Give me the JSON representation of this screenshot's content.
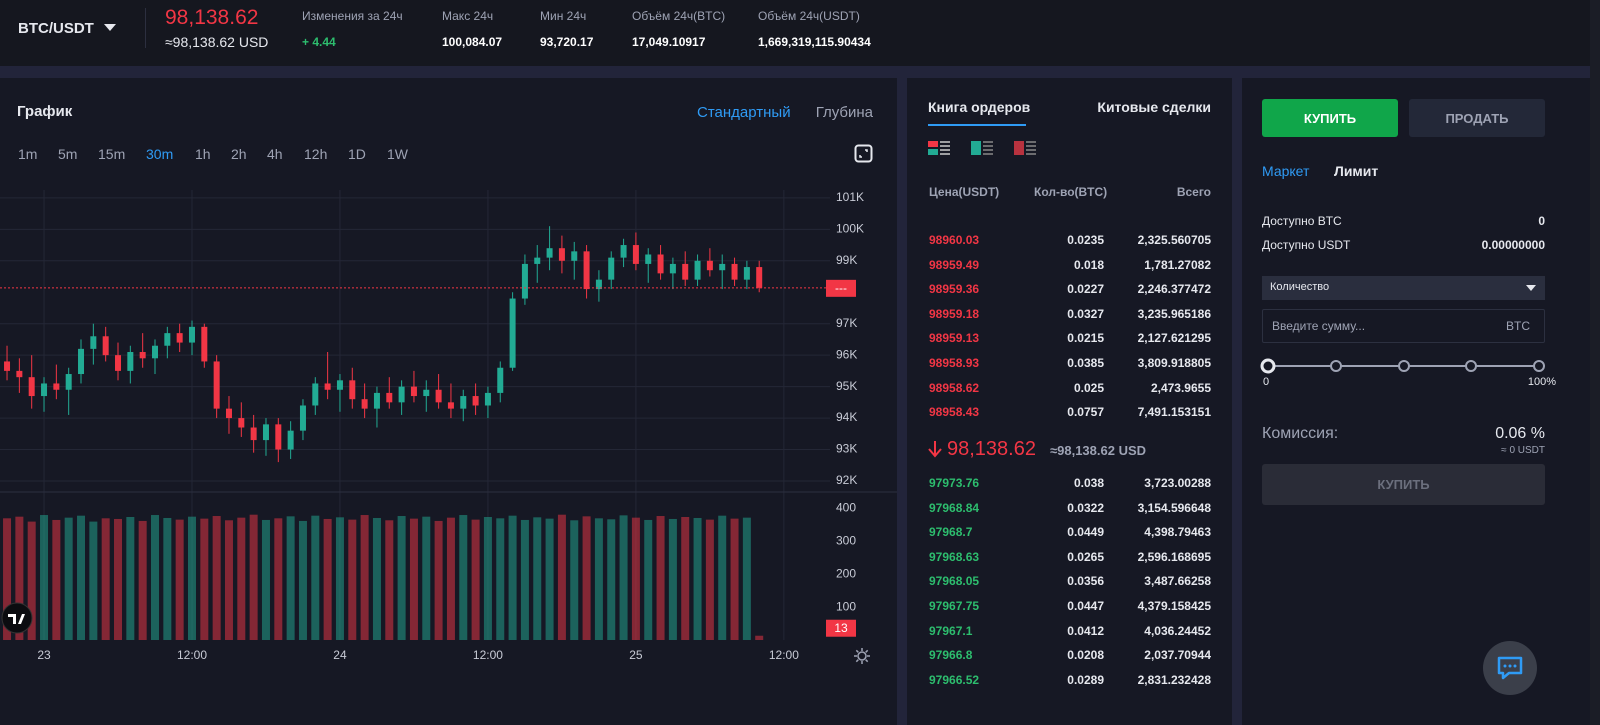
{
  "header": {
    "pair": "BTC/USDT",
    "price": "98,138.62",
    "price_usd": "≈98,138.62 USD",
    "stats": [
      {
        "label": "Изменения за 24ч",
        "value": "+ 4.44"
      },
      {
        "label": "Макс 24ч",
        "value": "100,084.07"
      },
      {
        "label": "Мин 24ч",
        "value": "93,720.17"
      },
      {
        "label": "Объём 24ч(BTC)",
        "value": "17,049.10917"
      },
      {
        "label": "Объём 24ч(USDT)",
        "value": "1,669,319,115.90434"
      }
    ]
  },
  "chart_panel": {
    "title": "График",
    "views": [
      "Стандартный",
      "Глубина"
    ],
    "active_view": 0,
    "timeframes": [
      "1m",
      "5m",
      "15m",
      "30m",
      "1h",
      "2h",
      "4h",
      "12h",
      "1D",
      "1W"
    ],
    "active_timeframe": 3
  },
  "chart_data": {
    "type": "candlestick",
    "x": [
      -3,
      -2,
      -1,
      0,
      1,
      2,
      3,
      4,
      5,
      6,
      7,
      8,
      9,
      10,
      11,
      12,
      13,
      14,
      15,
      16,
      17,
      18,
      19,
      20,
      21,
      22,
      23,
      24,
      25,
      26,
      27,
      28,
      29,
      30,
      31,
      32,
      33,
      34,
      35,
      36,
      37,
      38,
      39,
      40,
      41,
      42,
      43,
      44,
      45,
      46,
      47,
      48,
      49,
      50,
      51,
      52,
      53,
      54,
      55,
      56,
      57,
      58
    ],
    "open": [
      95800,
      95500,
      95300,
      94700,
      95100,
      94900,
      95400,
      96200,
      96600,
      96000,
      95500,
      96100,
      95900,
      96300,
      96700,
      96400,
      96900,
      95800,
      94300,
      94000,
      93700,
      93300,
      93800,
      93000,
      93600,
      94400,
      95100,
      94900,
      95200,
      94600,
      94300,
      94800,
      94500,
      95000,
      94700,
      94900,
      94500,
      94300,
      94700,
      94400,
      94800,
      95600,
      97800,
      98900,
      99100,
      99400,
      99000,
      99300,
      98100,
      98400,
      99100,
      99500,
      98900,
      99200,
      98600,
      98900,
      98400,
      99000,
      98700,
      98900,
      98400,
      98800
    ],
    "high": [
      96300,
      95900,
      96000,
      95300,
      95700,
      95600,
      96500,
      97000,
      96900,
      96400,
      96300,
      96700,
      96500,
      96900,
      97000,
      97100,
      97000,
      96000,
      94700,
      94500,
      94100,
      94000,
      94000,
      93900,
      94600,
      95300,
      96100,
      95400,
      95600,
      95100,
      95000,
      95300,
      95200,
      95500,
      95200,
      95400,
      95100,
      94900,
      95100,
      95000,
      95800,
      98000,
      99200,
      99500,
      100100,
      99800,
      99600,
      99500,
      98700,
      99300,
      99700,
      99900,
      99400,
      99500,
      99100,
      99300,
      99200,
      99400,
      99200,
      99100,
      99000,
      99000
    ],
    "low": [
      95200,
      94800,
      94300,
      94200,
      94600,
      94100,
      95100,
      95700,
      95800,
      95200,
      95100,
      95600,
      95400,
      95900,
      96100,
      96000,
      95600,
      94000,
      93500,
      93400,
      92900,
      92800,
      92600,
      92700,
      93300,
      94100,
      94600,
      94200,
      94300,
      94000,
      93700,
      94300,
      94100,
      94500,
      94200,
      94300,
      94000,
      93900,
      94100,
      94000,
      94500,
      95500,
      97600,
      98300,
      98700,
      98600,
      98400,
      97800,
      97700,
      98100,
      98800,
      98700,
      98300,
      98400,
      98100,
      98200,
      98200,
      98500,
      98100,
      98200,
      98100,
      98000
    ],
    "close": [
      95500,
      95300,
      94700,
      95100,
      94900,
      95400,
      96200,
      96600,
      96000,
      95500,
      96100,
      95900,
      96300,
      96700,
      96400,
      96900,
      95800,
      94300,
      94000,
      93700,
      93300,
      93800,
      93000,
      93600,
      94400,
      95100,
      94900,
      95200,
      94600,
      94300,
      94800,
      94500,
      95000,
      94700,
      94900,
      94500,
      94300,
      94700,
      94400,
      94800,
      95600,
      97800,
      98900,
      99100,
      99400,
      99000,
      99300,
      98100,
      98400,
      99100,
      99500,
      98900,
      99200,
      98600,
      98900,
      98400,
      99000,
      98700,
      98900,
      98400,
      98800,
      98140
    ],
    "volume": [
      370,
      375,
      360,
      380,
      365,
      372,
      378,
      360,
      370,
      368,
      374,
      362,
      380,
      371,
      366,
      375,
      369,
      377,
      364,
      372,
      381,
      365,
      370,
      376,
      362,
      378,
      368,
      373,
      366,
      380,
      371,
      364,
      377,
      369,
      375,
      362,
      372,
      380,
      366,
      374,
      370,
      378,
      365,
      373,
      369,
      381,
      364,
      376,
      370,
      367,
      379,
      372,
      365,
      377,
      368,
      374,
      371,
      366,
      378,
      369,
      372,
      13
    ],
    "xlim": [
      -3.57,
      62.93
    ],
    "xticks": [
      {
        "value": 0,
        "label": "23"
      },
      {
        "value": 12,
        "label": "12:00"
      },
      {
        "value": 24,
        "label": "24"
      },
      {
        "value": 36,
        "label": "12:00"
      },
      {
        "value": 48,
        "label": "25"
      },
      {
        "value": 60,
        "label": "12:00"
      }
    ],
    "ylim": [
      91650,
      101250
    ],
    "yticks": [
      {
        "value": 92000,
        "label": "92K"
      },
      {
        "value": 93000,
        "label": "93K"
      },
      {
        "value": 94000,
        "label": "94K"
      },
      {
        "value": 95000,
        "label": "95K"
      },
      {
        "value": 96000,
        "label": "96K"
      },
      {
        "value": 97000,
        "label": "97K"
      },
      {
        "value": 99000,
        "label": "99K"
      },
      {
        "value": 100000,
        "label": "100K"
      },
      {
        "value": 101000,
        "label": "101K"
      }
    ],
    "volume_ylim": [
      0,
      450
    ],
    "volume_yticks": [
      100,
      200,
      300,
      400
    ],
    "last_price_label": "---",
    "grid": true,
    "up_color": "#22ab94",
    "down_color": "#f23645"
  },
  "orderbook": {
    "tabs": [
      "Книга ордеров",
      "Китовые сделки"
    ],
    "columns": [
      "Цена(USDT)",
      "Кол-во(BTC)",
      "Всего"
    ],
    "asks": [
      [
        "98960.03",
        "0.0235",
        "2,325.560705"
      ],
      [
        "98959.49",
        "0.018",
        "1,781.27082"
      ],
      [
        "98959.36",
        "0.0227",
        "2,246.377472"
      ],
      [
        "98959.18",
        "0.0327",
        "3,235.965186"
      ],
      [
        "98959.13",
        "0.0215",
        "2,127.621295"
      ],
      [
        "98958.93",
        "0.0385",
        "3,809.918805"
      ],
      [
        "98958.62",
        "0.025",
        "2,473.9655"
      ],
      [
        "98958.43",
        "0.0757",
        "7,491.153151"
      ]
    ],
    "mid_price": "98,138.62",
    "mid_usd": "≈98,138.62 USD",
    "bids": [
      [
        "97973.76",
        "0.038",
        "3,723.00288"
      ],
      [
        "97968.84",
        "0.0322",
        "3,154.596648"
      ],
      [
        "97968.7",
        "0.0449",
        "4,398.79463"
      ],
      [
        "97968.63",
        "0.0265",
        "2,596.168695"
      ],
      [
        "97968.05",
        "0.0356",
        "3,487.66258"
      ],
      [
        "97967.75",
        "0.0447",
        "4,379.158425"
      ],
      [
        "97967.1",
        "0.0412",
        "4,036.24452"
      ],
      [
        "97966.8",
        "0.0208",
        "2,037.70944"
      ],
      [
        "97966.52",
        "0.0289",
        "2,831.232428"
      ]
    ]
  },
  "trade": {
    "buy": "КУПИТЬ",
    "sell": "ПРОДАТЬ",
    "order_types": [
      "Маркет",
      "Лимит"
    ],
    "available": [
      {
        "label": "Доступно BTC",
        "value": "0"
      },
      {
        "label": "Доступно USDT",
        "value": "0.00000000"
      }
    ],
    "amount_select": "Количество",
    "amount_placeholder": "Введите сумму...",
    "amount_unit": "BTC",
    "slider_min": "0%",
    "slider_min_label": "0",
    "slider_max_label": "100%",
    "fee_label": "Комиссия:",
    "fee": "0.06 %",
    "fee_usdt": "≈ 0 USDT",
    "submit": "КУПИТЬ"
  }
}
